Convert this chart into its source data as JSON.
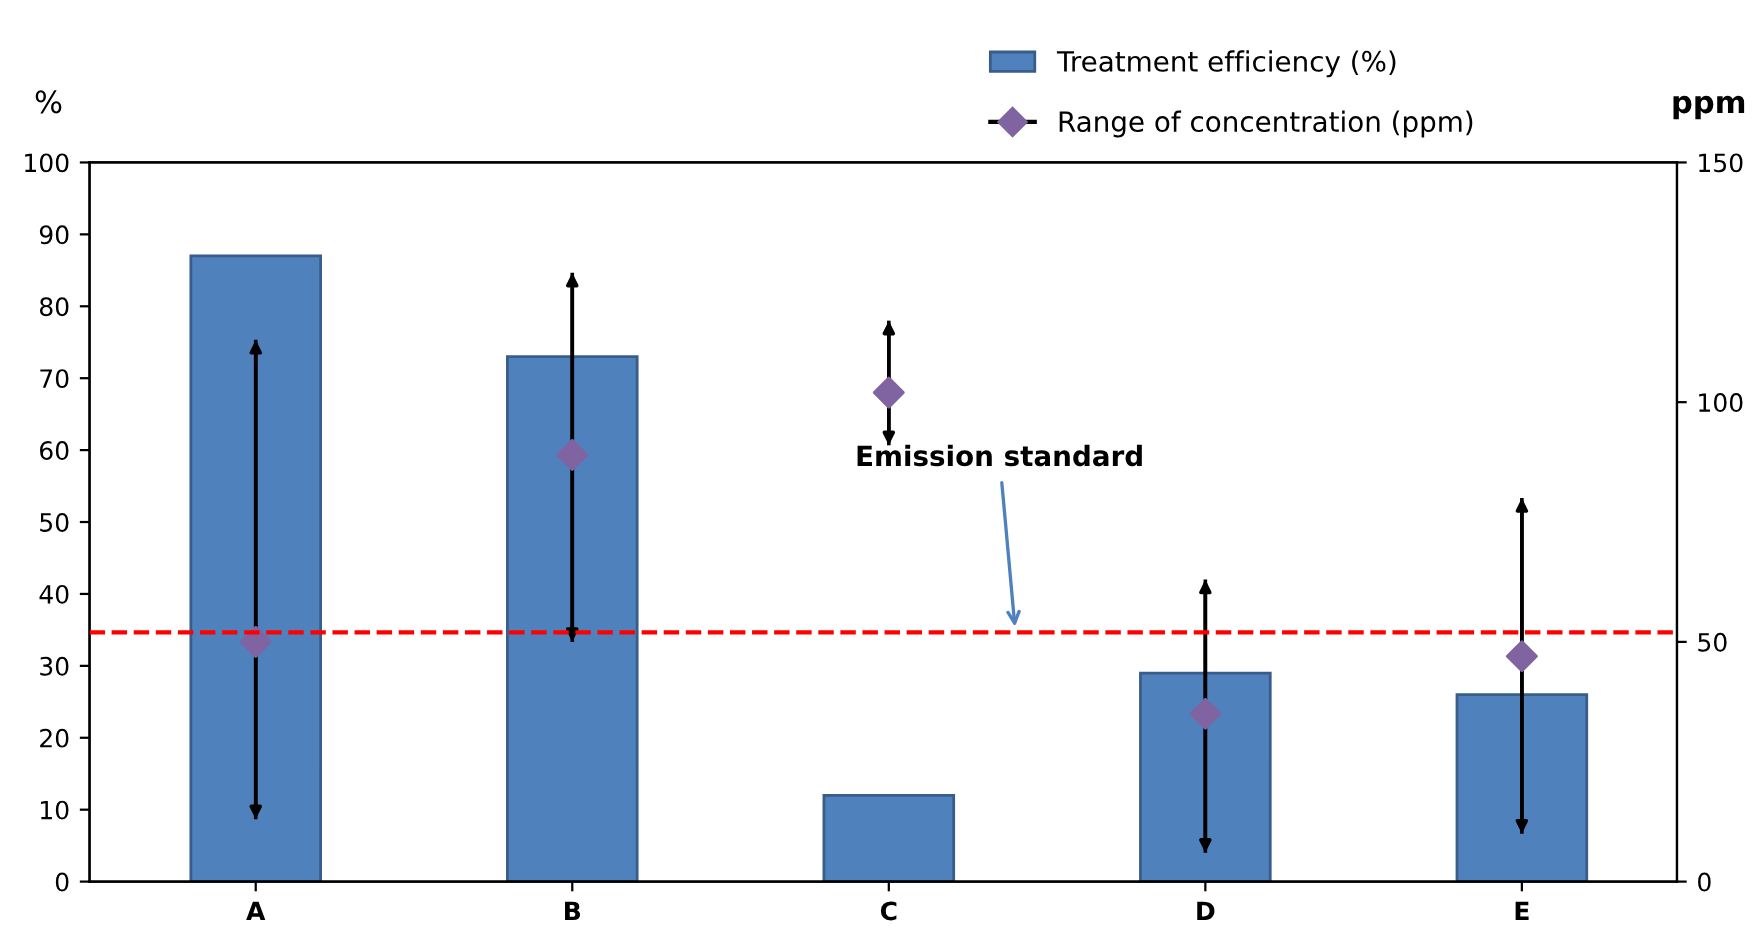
{
  "chart_data": {
    "type": "bar",
    "categories": [
      "A",
      "B",
      "C",
      "D",
      "E"
    ],
    "ylabel": "%",
    "y2label": "ppm",
    "series": [
      {
        "name": "Treatment efficiency (%)",
        "color": "#4f81bd",
        "values": [
          87,
          73,
          12,
          29,
          26
        ]
      },
      {
        "name": "Range of concentration (ppm)",
        "type": "scatter",
        "axis": "y2",
        "color": "#8064a2",
        "marker": "diamond",
        "values": [
          50,
          89,
          102,
          35,
          47
        ],
        "errors": [
          [
            13,
            113
          ],
          [
            50,
            127
          ],
          [
            91,
            117
          ],
          [
            6,
            63
          ],
          [
            10,
            80
          ]
        ]
      }
    ],
    "ylim": [
      0,
      100
    ],
    "yticks": [
      0,
      10,
      20,
      30,
      40,
      50,
      60,
      70,
      80,
      90,
      100
    ],
    "y2lim": [
      0,
      150
    ],
    "y2ticks": [
      0,
      50,
      100,
      150
    ],
    "ref_lines": [
      {
        "axis": "y2",
        "value": 52,
        "label": "Emission standard",
        "color": "#ff0000",
        "line_style": "dashed"
      }
    ],
    "grid": false,
    "legend": "top"
  }
}
